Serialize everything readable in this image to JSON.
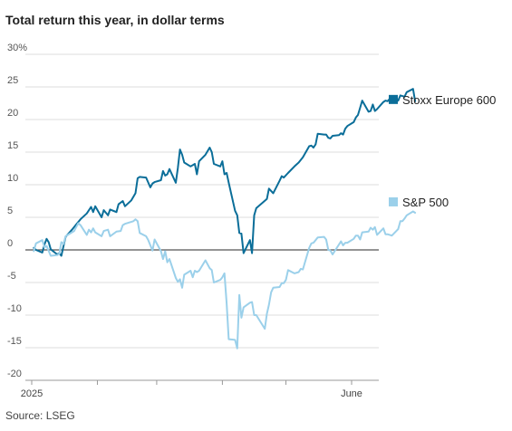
{
  "title": "Total return this year, in dollar terms",
  "source": "Source: LSEG",
  "chart_data": {
    "type": "line",
    "title": "Total return this year, in dollar terms",
    "y_ticks": [
      "30%",
      "25",
      "20",
      "15",
      "10",
      "5",
      "0",
      "-5",
      "-10",
      "-15",
      "-20"
    ],
    "ylim": [
      -20,
      30
    ],
    "x_tick_labels": [
      "2025",
      "June"
    ],
    "x_tick_months": [
      1,
      2,
      3,
      4,
      5,
      6
    ],
    "grid": "horizontal",
    "legend": "right, beside line ends",
    "series": [
      {
        "name": "Stoxx Europe 600",
        "color": "#0b6e99",
        "points": [
          [
            "2025-01-02",
            0.3
          ],
          [
            "2025-01-03",
            0.0
          ],
          [
            "2025-01-06",
            -0.4
          ],
          [
            "2025-01-07",
            0.8
          ],
          [
            "2025-01-08",
            1.7
          ],
          [
            "2025-01-09",
            1.2
          ],
          [
            "2025-01-10",
            0.1
          ],
          [
            "2025-01-13",
            -0.7
          ],
          [
            "2025-01-14",
            -0.5
          ],
          [
            "2025-01-15",
            -0.9
          ],
          [
            "2025-01-16",
            0.6
          ],
          [
            "2025-01-17",
            2.0
          ],
          [
            "2025-01-20",
            3.1
          ],
          [
            "2025-01-22",
            3.9
          ],
          [
            "2025-01-24",
            4.7
          ],
          [
            "2025-01-27",
            5.6
          ],
          [
            "2025-01-29",
            6.6
          ],
          [
            "2025-01-30",
            5.8
          ],
          [
            "2025-01-31",
            6.7
          ],
          [
            "2025-02-03",
            5.0
          ],
          [
            "2025-02-04",
            6.1
          ],
          [
            "2025-02-06",
            5.3
          ],
          [
            "2025-02-07",
            6.2
          ],
          [
            "2025-02-10",
            5.8
          ],
          [
            "2025-02-11",
            7.0
          ],
          [
            "2025-02-13",
            7.5
          ],
          [
            "2025-02-14",
            6.7
          ],
          [
            "2025-02-17",
            7.6
          ],
          [
            "2025-02-19",
            8.7
          ],
          [
            "2025-02-20",
            11.0
          ],
          [
            "2025-02-21",
            11.2
          ],
          [
            "2025-02-24",
            11.1
          ],
          [
            "2025-02-26",
            9.6
          ],
          [
            "2025-02-27",
            10.2
          ],
          [
            "2025-02-28",
            10.4
          ],
          [
            "2025-03-03",
            10.7
          ],
          [
            "2025-03-04",
            12.1
          ],
          [
            "2025-03-05",
            11.4
          ],
          [
            "2025-03-06",
            11.6
          ],
          [
            "2025-03-07",
            12.4
          ],
          [
            "2025-03-10",
            10.3
          ],
          [
            "2025-03-11",
            12.6
          ],
          [
            "2025-03-12",
            15.4
          ],
          [
            "2025-03-13",
            14.6
          ],
          [
            "2025-03-14",
            13.4
          ],
          [
            "2025-03-17",
            12.8
          ],
          [
            "2025-03-19",
            13.2
          ],
          [
            "2025-03-20",
            11.6
          ],
          [
            "2025-03-21",
            13.6
          ],
          [
            "2025-03-24",
            14.6
          ],
          [
            "2025-03-26",
            15.7
          ],
          [
            "2025-03-27",
            15.0
          ],
          [
            "2025-03-28",
            13.2
          ],
          [
            "2025-03-31",
            12.8
          ],
          [
            "2025-04-01",
            13.6
          ],
          [
            "2025-04-02",
            11.6
          ],
          [
            "2025-04-03",
            11.8
          ],
          [
            "2025-04-04",
            10.3
          ],
          [
            "2025-04-07",
            6.0
          ],
          [
            "2025-04-08",
            5.3
          ],
          [
            "2025-04-09",
            2.6
          ],
          [
            "2025-04-10",
            2.5
          ],
          [
            "2025-04-11",
            -0.5
          ],
          [
            "2025-04-14",
            1.5
          ],
          [
            "2025-04-15",
            -0.5
          ],
          [
            "2025-04-16",
            5.3
          ],
          [
            "2025-04-17",
            6.4
          ],
          [
            "2025-04-22",
            7.8
          ],
          [
            "2025-04-23",
            9.4
          ],
          [
            "2025-04-25",
            8.7
          ],
          [
            "2025-04-28",
            10.6
          ],
          [
            "2025-04-29",
            11.3
          ],
          [
            "2025-04-30",
            11.1
          ],
          [
            "2025-05-02",
            11.8
          ],
          [
            "2025-05-05",
            12.8
          ],
          [
            "2025-05-07",
            13.4
          ],
          [
            "2025-05-09",
            14.2
          ],
          [
            "2025-05-12",
            15.9
          ],
          [
            "2025-05-13",
            16.0
          ],
          [
            "2025-05-14",
            15.7
          ],
          [
            "2025-05-15",
            16.2
          ],
          [
            "2025-05-16",
            17.8
          ],
          [
            "2025-05-19",
            17.7
          ],
          [
            "2025-05-20",
            17.7
          ],
          [
            "2025-05-21",
            17.2
          ],
          [
            "2025-05-22",
            17.1
          ],
          [
            "2025-05-23",
            17.5
          ],
          [
            "2025-05-26",
            17.6
          ],
          [
            "2025-05-27",
            17.9
          ],
          [
            "2025-05-28",
            17.7
          ],
          [
            "2025-05-29",
            18.6
          ],
          [
            "2025-05-30",
            19.0
          ],
          [
            "2025-06-02",
            19.6
          ],
          [
            "2025-06-03",
            20.3
          ],
          [
            "2025-06-04",
            20.7
          ],
          [
            "2025-06-05",
            21.8
          ],
          [
            "2025-06-06",
            22.9
          ],
          [
            "2025-06-09",
            21.2
          ],
          [
            "2025-06-10",
            21.3
          ],
          [
            "2025-06-11",
            22.3
          ],
          [
            "2025-06-12",
            21.3
          ],
          [
            "2025-06-13",
            21.6
          ],
          [
            "2025-06-16",
            22.7
          ],
          [
            "2025-06-17",
            22.9
          ],
          [
            "2025-06-18",
            22.8
          ],
          [
            "2025-06-19",
            23.2
          ],
          [
            "2025-06-20",
            23.3
          ],
          [
            "2025-06-23",
            22.9
          ],
          [
            "2025-06-24",
            23.7
          ],
          [
            "2025-06-25",
            23.6
          ],
          [
            "2025-06-26",
            23.5
          ],
          [
            "2025-06-27",
            24.2
          ],
          [
            "2025-06-30",
            24.7
          ],
          [
            "2025-07-01",
            22.8
          ]
        ]
      },
      {
        "name": "S&P 500",
        "color": "#9bd0ea",
        "points": [
          [
            "2025-01-02",
            -0.2
          ],
          [
            "2025-01-03",
            1.0
          ],
          [
            "2025-01-06",
            1.5
          ],
          [
            "2025-01-07",
            0.4
          ],
          [
            "2025-01-08",
            0.6
          ],
          [
            "2025-01-10",
            -0.9
          ],
          [
            "2025-01-13",
            -0.8
          ],
          [
            "2025-01-14",
            -0.6
          ],
          [
            "2025-01-15",
            1.2
          ],
          [
            "2025-01-16",
            0.9
          ],
          [
            "2025-01-17",
            2.1
          ],
          [
            "2025-01-21",
            2.9
          ],
          [
            "2025-01-22",
            3.5
          ],
          [
            "2025-01-23",
            4.1
          ],
          [
            "2025-01-24",
            3.8
          ],
          [
            "2025-01-27",
            2.3
          ],
          [
            "2025-01-28",
            3.1
          ],
          [
            "2025-01-29",
            2.7
          ],
          [
            "2025-01-30",
            3.3
          ],
          [
            "2025-01-31",
            2.7
          ],
          [
            "2025-02-03",
            2.1
          ],
          [
            "2025-02-04",
            2.9
          ],
          [
            "2025-02-06",
            3.1
          ],
          [
            "2025-02-07",
            2.1
          ],
          [
            "2025-02-10",
            2.8
          ],
          [
            "2025-02-12",
            2.9
          ],
          [
            "2025-02-13",
            3.8
          ],
          [
            "2025-02-14",
            4.0
          ],
          [
            "2025-02-18",
            4.4
          ],
          [
            "2025-02-19",
            4.7
          ],
          [
            "2025-02-20",
            4.4
          ],
          [
            "2025-02-21",
            2.6
          ],
          [
            "2025-02-24",
            2.1
          ],
          [
            "2025-02-25",
            1.5
          ],
          [
            "2025-02-27",
            -0.1
          ],
          [
            "2025-02-28",
            1.6
          ],
          [
            "2025-03-03",
            -0.2
          ],
          [
            "2025-03-04",
            -1.4
          ],
          [
            "2025-03-05",
            -0.2
          ],
          [
            "2025-03-06",
            -1.9
          ],
          [
            "2025-03-07",
            -1.4
          ],
          [
            "2025-03-10",
            -4.3
          ],
          [
            "2025-03-11",
            -4.9
          ],
          [
            "2025-03-12",
            -4.5
          ],
          [
            "2025-03-13",
            -5.8
          ],
          [
            "2025-03-14",
            -3.8
          ],
          [
            "2025-03-17",
            -3.2
          ],
          [
            "2025-03-18",
            -4.2
          ],
          [
            "2025-03-19",
            -3.2
          ],
          [
            "2025-03-20",
            -3.4
          ],
          [
            "2025-03-21",
            -3.2
          ],
          [
            "2025-03-24",
            -1.6
          ],
          [
            "2025-03-26",
            -2.8
          ],
          [
            "2025-03-27",
            -3.1
          ],
          [
            "2025-03-28",
            -5.0
          ],
          [
            "2025-03-31",
            -4.6
          ],
          [
            "2025-04-01",
            -4.2
          ],
          [
            "2025-04-02",
            -3.6
          ],
          [
            "2025-04-03",
            -8.2
          ],
          [
            "2025-04-04",
            -13.7
          ],
          [
            "2025-04-07",
            -13.8
          ],
          [
            "2025-04-08",
            -15.1
          ],
          [
            "2025-04-09",
            -6.9
          ],
          [
            "2025-04-10",
            -10.4
          ],
          [
            "2025-04-11",
            -8.8
          ],
          [
            "2025-04-14",
            -8.1
          ],
          [
            "2025-04-15",
            -8.0
          ],
          [
            "2025-04-16",
            -10.0
          ],
          [
            "2025-04-17",
            -10.0
          ],
          [
            "2025-04-21",
            -12.1
          ],
          [
            "2025-04-22",
            -9.8
          ],
          [
            "2025-04-23",
            -8.4
          ],
          [
            "2025-04-24",
            -6.5
          ],
          [
            "2025-04-25",
            -5.8
          ],
          [
            "2025-04-28",
            -5.7
          ],
          [
            "2025-04-29",
            -5.1
          ],
          [
            "2025-04-30",
            -5.1
          ],
          [
            "2025-05-01",
            -4.6
          ],
          [
            "2025-05-02",
            -3.1
          ],
          [
            "2025-05-05",
            -3.6
          ],
          [
            "2025-05-07",
            -3.4
          ],
          [
            "2025-05-08",
            -2.9
          ],
          [
            "2025-05-09",
            -3.0
          ],
          [
            "2025-05-12",
            0.3
          ],
          [
            "2025-05-13",
            1.0
          ],
          [
            "2025-05-14",
            1.1
          ],
          [
            "2025-05-15",
            1.5
          ],
          [
            "2025-05-16",
            1.9
          ],
          [
            "2025-05-19",
            2.0
          ],
          [
            "2025-05-20",
            1.6
          ],
          [
            "2025-05-21",
            0.0
          ],
          [
            "2025-05-22",
            -0.1
          ],
          [
            "2025-05-23",
            -0.7
          ],
          [
            "2025-05-27",
            1.3
          ],
          [
            "2025-05-28",
            0.7
          ],
          [
            "2025-05-29",
            1.1
          ],
          [
            "2025-05-30",
            1.1
          ],
          [
            "2025-06-02",
            1.7
          ],
          [
            "2025-06-03",
            2.2
          ],
          [
            "2025-06-04",
            2.2
          ],
          [
            "2025-06-05",
            1.6
          ],
          [
            "2025-06-06",
            2.7
          ],
          [
            "2025-06-09",
            2.8
          ],
          [
            "2025-06-10",
            3.4
          ],
          [
            "2025-06-11",
            3.1
          ],
          [
            "2025-06-12",
            3.5
          ],
          [
            "2025-06-13",
            2.3
          ],
          [
            "2025-06-16",
            3.3
          ],
          [
            "2025-06-17",
            2.4
          ],
          [
            "2025-06-18",
            2.4
          ],
          [
            "2025-06-20",
            2.2
          ],
          [
            "2025-06-23",
            3.2
          ],
          [
            "2025-06-24",
            4.4
          ],
          [
            "2025-06-25",
            4.4
          ],
          [
            "2025-06-26",
            4.8
          ],
          [
            "2025-06-27",
            5.3
          ],
          [
            "2025-06-30",
            5.9
          ],
          [
            "2025-07-01",
            5.7
          ]
        ]
      }
    ]
  }
}
